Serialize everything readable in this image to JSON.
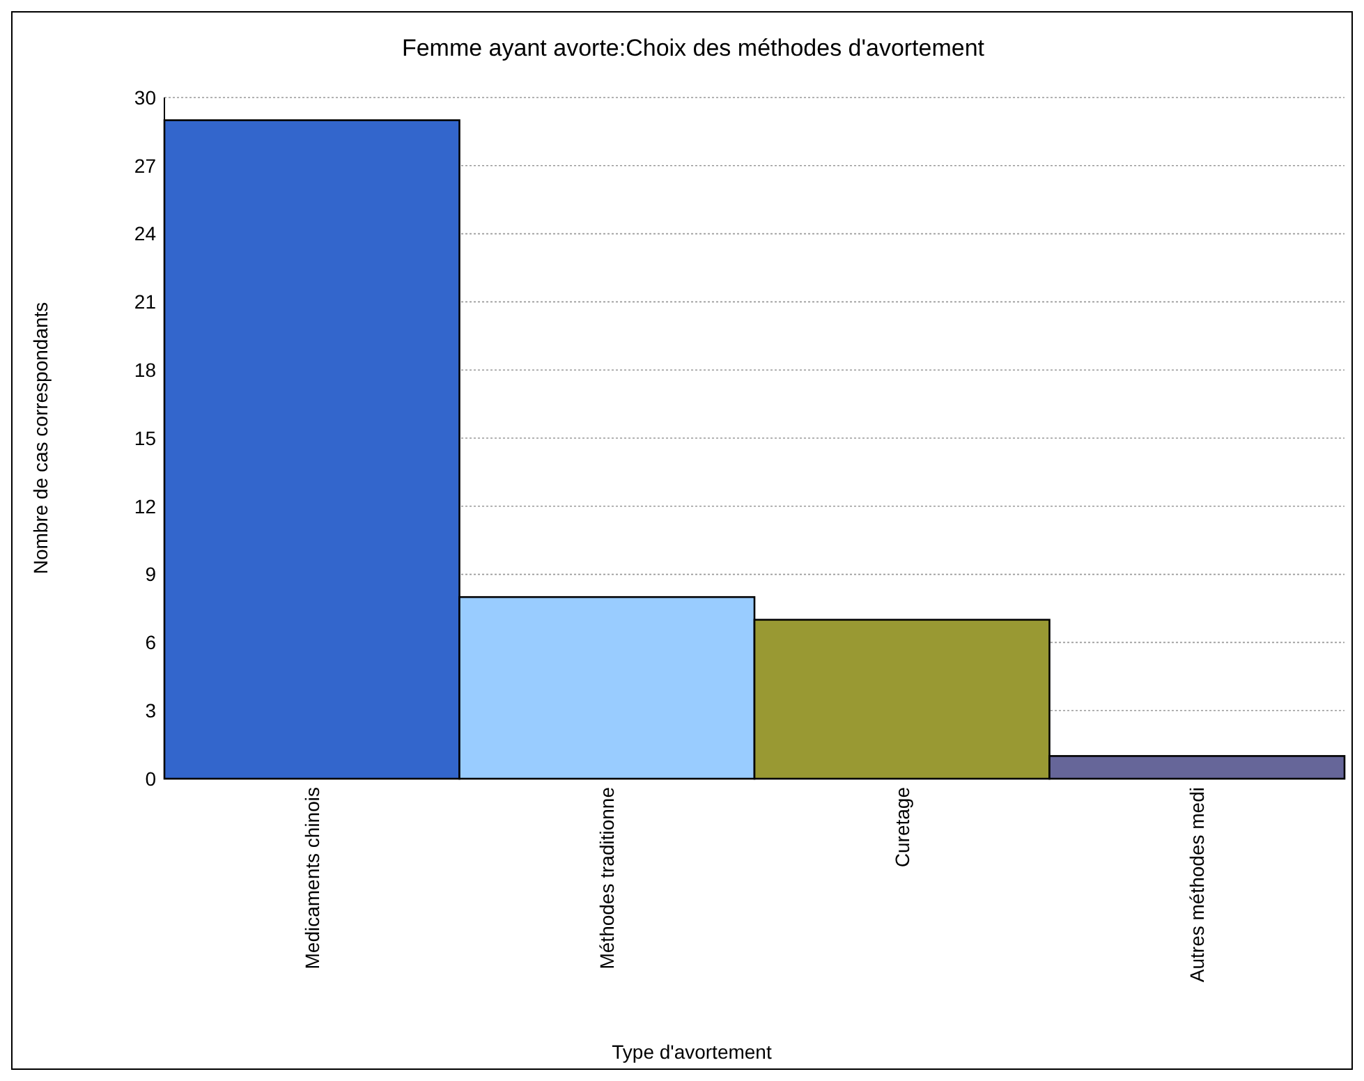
{
  "chart_data": {
    "type": "bar",
    "title": "Femme ayant avorte:Choix des méthodes d'avortement",
    "xlabel": "Type d'avortement",
    "ylabel": "Nombre de cas correspondants",
    "categories": [
      "Medicaments chinois",
      "Méthodes traditionne",
      "Curetage",
      "Autres méthodes medi"
    ],
    "values": [
      29,
      8,
      7,
      1
    ],
    "colors": [
      "#3366cc",
      "#99ccff",
      "#999933",
      "#666699"
    ],
    "ylim": [
      0,
      30
    ],
    "yticks": [
      0,
      3,
      6,
      9,
      12,
      15,
      18,
      21,
      24,
      27,
      30
    ],
    "grid": "y"
  }
}
